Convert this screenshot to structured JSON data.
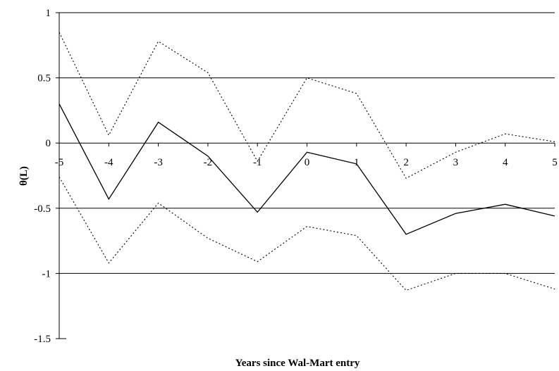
{
  "chart_data": {
    "type": "line",
    "title": "",
    "xlabel": "Years since Wal-Mart entry",
    "ylabel": "θ(L)",
    "x": [
      -5,
      -4,
      -3,
      -2,
      -1,
      0,
      1,
      2,
      3,
      4,
      5
    ],
    "xlim": [
      -5,
      5
    ],
    "ylim": [
      -1.5,
      1
    ],
    "yticks": [
      -1.5,
      -1,
      -0.5,
      0,
      0.5,
      1
    ],
    "ytick_labels": [
      "-1.5",
      "-1",
      "-0.5",
      "0",
      "0.5",
      "1"
    ],
    "xtick_labels": [
      "-5",
      "-4",
      "-3",
      "-2",
      "-1",
      "0",
      "1",
      "2",
      "3",
      "4",
      "5"
    ],
    "grid": "horizontal",
    "legend": "none",
    "series": [
      {
        "style": "solid",
        "color": "#000000",
        "values": [
          0.3,
          -0.43,
          0.16,
          -0.1,
          -0.53,
          -0.07,
          -0.16,
          -0.7,
          -0.54,
          -0.47,
          -0.56
        ]
      },
      {
        "style": "dotted",
        "color": "#000000",
        "values": [
          0.85,
          0.06,
          0.78,
          0.54,
          -0.14,
          0.5,
          0.38,
          -0.27,
          -0.07,
          0.07,
          0.01
        ]
      },
      {
        "style": "dotted",
        "color": "#000000",
        "values": [
          -0.26,
          -0.92,
          -0.46,
          -0.73,
          -0.91,
          -0.64,
          -0.71,
          -1.13,
          -1.0,
          -1.0,
          -1.12
        ]
      }
    ]
  }
}
